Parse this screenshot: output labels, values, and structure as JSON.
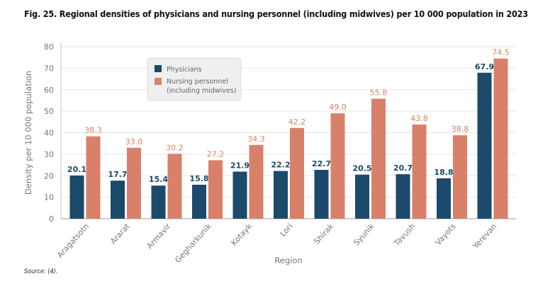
{
  "title": "Fig. 25. Regional densities of physicians and nursing personnel (including midwives) per 10 000 population in 2023",
  "source": "Source: (4).",
  "colors": {
    "physicians": "#1b4a6b",
    "nursing": "#d9806a",
    "grid": "#e6e6e6",
    "axis_text": "#777777"
  },
  "chart_data": {
    "type": "bar",
    "xlabel": "Region",
    "ylabel": "Density per 10 000 population",
    "ylim": [
      0,
      80
    ],
    "yticks": [
      0,
      10,
      20,
      30,
      40,
      50,
      60,
      70,
      80
    ],
    "grid": true,
    "legend_placement": "top-center-left",
    "categories": [
      "Aragatsotn",
      "Ararat",
      "Armavir",
      "Gegharkunik",
      "Kotayk",
      "Lori",
      "Shirak",
      "Syunik",
      "Tavush",
      "Vayots",
      "Yerevan"
    ],
    "series": [
      {
        "name": "Physicians",
        "values": [
          20.1,
          17.7,
          15.4,
          15.8,
          21.9,
          22.2,
          22.7,
          20.5,
          20.7,
          18.8,
          67.9
        ],
        "labels": [
          "20.1",
          "17.7",
          "15.4",
          "15.8",
          "21.9",
          "22.2",
          "22.7",
          "20.5",
          "20.7",
          "18.8",
          "67.9"
        ]
      },
      {
        "name": "Nursing personnel (including midwives)",
        "legend_lines": [
          "Nursing personnel",
          "(including midwives)"
        ],
        "values": [
          38.3,
          33.0,
          30.2,
          27.2,
          34.3,
          42.2,
          49.0,
          55.8,
          43.8,
          38.8,
          74.5
        ],
        "labels": [
          "38.3",
          "33.0",
          "30.2",
          "27.2",
          "34.3",
          "42.2",
          "49.0",
          "55.8",
          "43.8",
          "38.8",
          "74.5"
        ]
      }
    ]
  }
}
